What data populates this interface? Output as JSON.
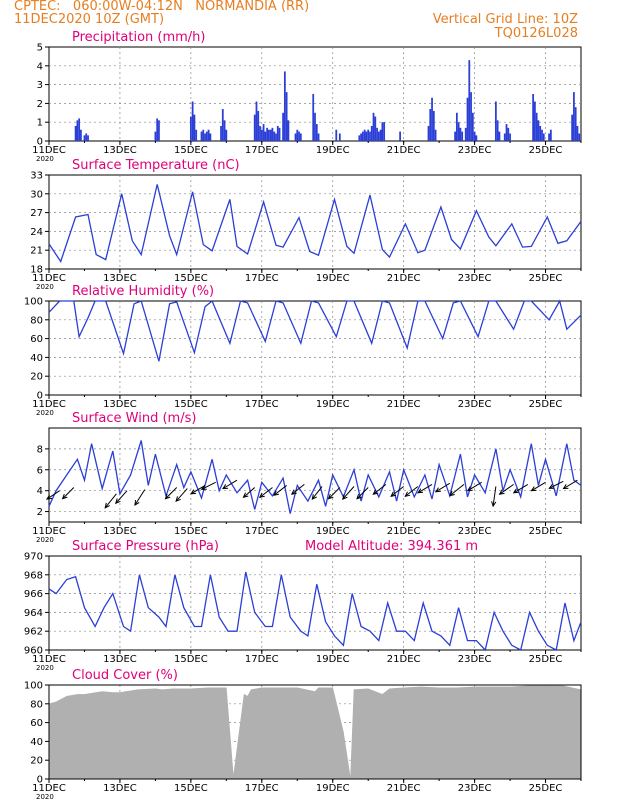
{
  "header": {
    "line1_left": "CPTEC:   060:00W-04:12N   NORMANDIA (RR)",
    "line2_left": "11DEC2020 10Z (GMT)",
    "line2_right": "Vertical Grid Line: 10Z",
    "line3_right": "TQ0126L028"
  },
  "colors": {
    "header": "#e67e22",
    "panel_title": "#e0007a",
    "line": "#2b3fd6",
    "bars": "#2b3fd6",
    "cloud": "#b0b0b0",
    "vectors": "#000000"
  },
  "x_axis": {
    "start_day": 11,
    "end_day": 26,
    "tick_labels": [
      "11DEC",
      "13DEC",
      "15DEC",
      "17DEC",
      "19DEC",
      "21DEC",
      "23DEC",
      "25DEC"
    ],
    "tick_days": [
      11,
      13,
      15,
      17,
      19,
      21,
      23,
      25
    ],
    "year_label": "2020"
  },
  "chart_data": [
    {
      "id": "precip",
      "type": "bar",
      "title": "Precipitation  (mm/h)",
      "ylim": [
        0,
        5
      ],
      "yticks": [
        0,
        1,
        2,
        3,
        4,
        5
      ],
      "points": [
        [
          11.75,
          0.8
        ],
        [
          11.8,
          1.1
        ],
        [
          11.85,
          1.2
        ],
        [
          11.9,
          0.6
        ],
        [
          12.0,
          0.3
        ],
        [
          12.05,
          0.4
        ],
        [
          12.1,
          0.3
        ],
        [
          14.0,
          0.5
        ],
        [
          14.05,
          1.2
        ],
        [
          14.1,
          1.1
        ],
        [
          15.0,
          1.3
        ],
        [
          15.05,
          2.1
        ],
        [
          15.1,
          1.4
        ],
        [
          15.15,
          0.6
        ],
        [
          15.3,
          0.5
        ],
        [
          15.35,
          0.6
        ],
        [
          15.4,
          0.4
        ],
        [
          15.45,
          0.5
        ],
        [
          15.5,
          0.6
        ],
        [
          15.55,
          0.4
        ],
        [
          15.85,
          0.8
        ],
        [
          15.9,
          1.7
        ],
        [
          15.95,
          1.1
        ],
        [
          16.0,
          0.6
        ],
        [
          16.8,
          1.4
        ],
        [
          16.85,
          2.1
        ],
        [
          16.9,
          1.6
        ],
        [
          16.95,
          0.8
        ],
        [
          17.0,
          0.6
        ],
        [
          17.05,
          0.9
        ],
        [
          17.1,
          0.5
        ],
        [
          17.15,
          0.7
        ],
        [
          17.2,
          0.6
        ],
        [
          17.25,
          0.6
        ],
        [
          17.3,
          0.7
        ],
        [
          17.35,
          0.5
        ],
        [
          17.4,
          0.4
        ],
        [
          17.45,
          0.8
        ],
        [
          17.5,
          0.7
        ],
        [
          17.6,
          1.5
        ],
        [
          17.65,
          3.7
        ],
        [
          17.7,
          2.6
        ],
        [
          17.75,
          1.1
        ],
        [
          17.95,
          0.4
        ],
        [
          18.0,
          0.6
        ],
        [
          18.05,
          0.5
        ],
        [
          18.1,
          0.4
        ],
        [
          18.45,
          2.5
        ],
        [
          18.5,
          1.5
        ],
        [
          18.55,
          0.9
        ],
        [
          18.6,
          0.4
        ],
        [
          19.1,
          0.6
        ],
        [
          19.2,
          0.4
        ],
        [
          19.75,
          0.3
        ],
        [
          19.8,
          0.4
        ],
        [
          19.85,
          0.5
        ],
        [
          19.9,
          0.6
        ],
        [
          19.95,
          0.5
        ],
        [
          20.0,
          0.6
        ],
        [
          20.05,
          0.5
        ],
        [
          20.1,
          0.8
        ],
        [
          20.15,
          1.5
        ],
        [
          20.2,
          1.3
        ],
        [
          20.25,
          0.7
        ],
        [
          20.3,
          0.5
        ],
        [
          20.35,
          0.6
        ],
        [
          20.4,
          1.0
        ],
        [
          20.45,
          1.0
        ],
        [
          20.9,
          0.5
        ],
        [
          21.7,
          0.8
        ],
        [
          21.75,
          1.7
        ],
        [
          21.8,
          2.3
        ],
        [
          21.85,
          1.6
        ],
        [
          21.9,
          0.6
        ],
        [
          22.45,
          0.5
        ],
        [
          22.5,
          1.5
        ],
        [
          22.55,
          1.0
        ],
        [
          22.6,
          0.7
        ],
        [
          22.65,
          0.5
        ],
        [
          22.75,
          0.7
        ],
        [
          22.8,
          2.3
        ],
        [
          22.85,
          4.3
        ],
        [
          22.9,
          2.6
        ],
        [
          22.95,
          1.5
        ],
        [
          23.0,
          0.5
        ],
        [
          23.05,
          0.3
        ],
        [
          23.6,
          2.1
        ],
        [
          23.65,
          1.1
        ],
        [
          23.7,
          0.5
        ],
        [
          23.85,
          0.4
        ],
        [
          23.9,
          0.9
        ],
        [
          23.95,
          0.7
        ],
        [
          24.0,
          0.4
        ],
        [
          24.65,
          2.5
        ],
        [
          24.7,
          2.1
        ],
        [
          24.75,
          1.5
        ],
        [
          24.8,
          1.1
        ],
        [
          24.85,
          0.8
        ],
        [
          24.9,
          0.6
        ],
        [
          24.95,
          0.4
        ],
        [
          25.1,
          0.4
        ],
        [
          25.15,
          0.6
        ],
        [
          25.75,
          1.4
        ],
        [
          25.8,
          2.6
        ],
        [
          25.85,
          1.8
        ],
        [
          25.9,
          0.8
        ],
        [
          25.95,
          0.4
        ]
      ]
    },
    {
      "id": "temp",
      "type": "line",
      "title": "Surface Temperature (nC)",
      "ylim": [
        18,
        33
      ],
      "yticks": [
        18,
        21,
        24,
        27,
        30,
        33
      ],
      "x": [
        11,
        11.33,
        11.75,
        12.1,
        12.33,
        12.6,
        13.05,
        13.35,
        13.6,
        14.05,
        14.4,
        14.6,
        15.05,
        15.35,
        15.6,
        16.1,
        16.3,
        16.6,
        17.05,
        17.4,
        17.6,
        18.05,
        18.35,
        18.6,
        19.05,
        19.4,
        19.6,
        20.05,
        20.4,
        20.6,
        21.05,
        21.4,
        21.6,
        22.05,
        22.35,
        22.6,
        23.05,
        23.4,
        23.6,
        24.05,
        24.35,
        24.6,
        25.05,
        25.35,
        25.6,
        26.0
      ],
      "y": [
        22,
        19.2,
        26.3,
        26.7,
        20.3,
        19.5,
        30.0,
        22.5,
        20.3,
        31.5,
        23.3,
        20.3,
        30.3,
        21.9,
        20.9,
        29.1,
        21.6,
        20.4,
        28.7,
        21.8,
        21.5,
        26.2,
        20.8,
        20.2,
        29.1,
        21.6,
        20.5,
        29.8,
        21.1,
        19.9,
        25.2,
        20.6,
        21.0,
        27.9,
        22.7,
        21.2,
        27.3,
        23.1,
        21.7,
        25.2,
        21.5,
        21.6,
        26.3,
        22.1,
        22.5,
        25.6
      ]
    },
    {
      "id": "rh",
      "type": "line",
      "title": "Relative Humidity (%)",
      "ylim": [
        0,
        100
      ],
      "yticks": [
        0,
        20,
        40,
        60,
        80,
        100
      ],
      "x": [
        11,
        11.3,
        11.7,
        11.85,
        12.1,
        12.3,
        12.6,
        13.1,
        13.4,
        13.6,
        14.1,
        14.4,
        14.6,
        15.1,
        15.4,
        15.6,
        16.1,
        16.4,
        16.6,
        17.1,
        17.4,
        17.6,
        18.1,
        18.4,
        18.6,
        19.1,
        19.4,
        19.6,
        20.1,
        20.4,
        20.6,
        21.1,
        21.4,
        21.6,
        22.1,
        22.4,
        22.6,
        23.1,
        23.4,
        23.6,
        24.1,
        24.4,
        24.6,
        25.1,
        25.4,
        25.6,
        26.0
      ],
      "y": [
        88,
        100,
        100,
        62,
        82,
        100,
        100,
        44,
        97,
        100,
        36,
        97,
        99,
        45,
        94,
        100,
        55,
        100,
        98,
        57,
        100,
        98,
        55,
        100,
        98,
        62,
        100,
        100,
        55,
        100,
        98,
        50,
        100,
        100,
        60,
        98,
        100,
        62,
        100,
        100,
        70,
        100,
        100,
        80,
        100,
        70,
        85
      ]
    },
    {
      "id": "wind",
      "type": "line",
      "title": "Surface Wind (m/s)",
      "ylim": [
        1,
        10
      ],
      "yticks": [
        2,
        4,
        6,
        8
      ],
      "x": [
        11,
        11.2,
        11.5,
        11.8,
        12.0,
        12.2,
        12.5,
        12.8,
        13.0,
        13.3,
        13.6,
        13.8,
        14.0,
        14.3,
        14.6,
        14.8,
        15.0,
        15.3,
        15.6,
        15.8,
        16.0,
        16.3,
        16.6,
        16.8,
        17.0,
        17.3,
        17.6,
        17.8,
        18.0,
        18.3,
        18.6,
        18.8,
        19.0,
        19.3,
        19.6,
        19.8,
        20.0,
        20.3,
        20.6,
        20.8,
        21.0,
        21.3,
        21.6,
        21.8,
        22.0,
        22.3,
        22.6,
        22.8,
        23.0,
        23.3,
        23.6,
        23.8,
        24.0,
        24.3,
        24.6,
        24.8,
        25.0,
        25.3,
        25.6,
        25.8,
        26.0
      ],
      "y": [
        2.5,
        4.0,
        5.5,
        7.0,
        5.0,
        8.5,
        4.2,
        7.8,
        3.7,
        5.5,
        8.8,
        4.5,
        7.5,
        3.5,
        6.5,
        4.3,
        5.8,
        3.3,
        7.0,
        4.0,
        5.5,
        3.8,
        5.0,
        2.2,
        4.8,
        3.5,
        5.2,
        1.8,
        4.5,
        3.0,
        5.0,
        2.5,
        5.5,
        3.4,
        6.0,
        3.0,
        5.5,
        3.4,
        5.8,
        3.0,
        6.0,
        3.4,
        5.5,
        3.2,
        6.5,
        3.5,
        7.5,
        3.4,
        5.5,
        3.8,
        8.0,
        4.0,
        6.0,
        3.4,
        8.5,
        4.5,
        7.0,
        3.5,
        8.5,
        5.0,
        4.5
      ],
      "arrows": [
        [
          11.3,
          4.0,
          -0.9,
          -0.6
        ],
        [
          11.7,
          4.3,
          -0.8,
          -0.8
        ],
        [
          12.9,
          3.7,
          -0.8,
          -1.0
        ],
        [
          13.2,
          4.0,
          -0.8,
          -0.9
        ],
        [
          13.7,
          4.1,
          -0.7,
          -1.1
        ],
        [
          14.6,
          4.3,
          -0.8,
          -0.8
        ],
        [
          14.9,
          4.2,
          -0.8,
          -0.9
        ],
        [
          15.4,
          4.5,
          -1.0,
          -0.6
        ],
        [
          15.7,
          4.8,
          -1.0,
          -0.5
        ],
        [
          16.3,
          5.0,
          -1.0,
          -0.6
        ],
        [
          16.8,
          4.3,
          -0.8,
          -0.7
        ],
        [
          17.3,
          4.3,
          -0.9,
          -0.7
        ],
        [
          17.7,
          4.5,
          -0.9,
          -0.7
        ],
        [
          18.2,
          4.6,
          -0.9,
          -0.7
        ],
        [
          18.7,
          4.4,
          -0.7,
          -0.9
        ],
        [
          19.2,
          4.3,
          -0.8,
          -0.8
        ],
        [
          19.6,
          4.4,
          -0.8,
          -0.9
        ],
        [
          20.0,
          4.3,
          -0.8,
          -0.8
        ],
        [
          20.5,
          4.6,
          -0.9,
          -0.7
        ],
        [
          21.0,
          4.4,
          -0.9,
          -0.7
        ],
        [
          21.4,
          4.4,
          -0.9,
          -0.7
        ],
        [
          21.8,
          4.6,
          -1.0,
          -0.6
        ],
        [
          22.3,
          4.7,
          -1.0,
          -0.6
        ],
        [
          22.7,
          4.6,
          -1.0,
          -0.8
        ],
        [
          23.2,
          4.8,
          -1.0,
          -0.6
        ],
        [
          23.6,
          4.4,
          -0.2,
          -1.4
        ],
        [
          24.1,
          4.6,
          -1.0,
          -0.7
        ],
        [
          24.5,
          4.6,
          -1.0,
          -0.6
        ],
        [
          25.0,
          4.8,
          -1.0,
          -0.6
        ],
        [
          25.5,
          4.9,
          -1.0,
          -0.5
        ],
        [
          25.9,
          5.0,
          -1.0,
          -0.6
        ]
      ]
    },
    {
      "id": "pres",
      "type": "line",
      "title": "Surface Pressure (hPa)",
      "subtitle": "Model Altitude: 394.361  m",
      "ylim": [
        960,
        970
      ],
      "yticks": [
        960,
        962,
        964,
        966,
        968,
        970
      ],
      "x": [
        11,
        11.2,
        11.5,
        11.75,
        12.0,
        12.3,
        12.55,
        12.8,
        13.1,
        13.3,
        13.55,
        13.8,
        14.1,
        14.3,
        14.55,
        14.8,
        15.1,
        15.3,
        15.55,
        15.8,
        16.05,
        16.3,
        16.55,
        16.8,
        17.1,
        17.3,
        17.55,
        17.8,
        18.1,
        18.3,
        18.55,
        18.8,
        19.05,
        19.3,
        19.55,
        19.8,
        20.05,
        20.3,
        20.55,
        20.8,
        21.05,
        21.3,
        21.55,
        21.8,
        22.05,
        22.3,
        22.55,
        22.8,
        23.05,
        23.3,
        23.55,
        23.8,
        24.05,
        24.3,
        24.55,
        24.8,
        25.05,
        25.3,
        25.55,
        25.8,
        26.0
      ],
      "y": [
        966.5,
        966.0,
        967.5,
        967.8,
        964.5,
        962.5,
        964.5,
        966.0,
        962.5,
        962.0,
        968.0,
        964.5,
        963.5,
        962.5,
        968.0,
        964.5,
        962.5,
        962.5,
        968.0,
        963.5,
        962.0,
        962.0,
        968.3,
        964.0,
        962.5,
        962.5,
        968.0,
        963.5,
        962.0,
        961.5,
        967.0,
        963.0,
        961.5,
        960.5,
        966.0,
        962.5,
        962.0,
        961.0,
        965.0,
        962.0,
        962.0,
        961.0,
        965.0,
        962.0,
        961.5,
        960.5,
        964.5,
        961.0,
        961.0,
        960.0,
        964.0,
        962.0,
        960.5,
        960.0,
        964.0,
        962.0,
        960.5,
        960.0,
        965.0,
        961.0,
        963.0
      ]
    },
    {
      "id": "cloud",
      "type": "area",
      "title": "Cloud Cover (%)",
      "ylim": [
        0,
        100
      ],
      "yticks": [
        0,
        20,
        40,
        60,
        80,
        100
      ],
      "x": [
        11,
        11.2,
        11.5,
        11.8,
        12.0,
        12.5,
        12.8,
        13.0,
        13.5,
        14.0,
        14.2,
        14.5,
        15.0,
        15.5,
        16.0,
        16.2,
        16.5,
        16.6,
        16.7,
        17.0,
        17.5,
        18.0,
        18.5,
        18.6,
        19.0,
        19.3,
        19.5,
        19.6,
        20.0,
        20.4,
        20.6,
        21.0,
        21.5,
        22.0,
        22.5,
        23.0,
        23.5,
        24.0,
        24.5,
        25.0,
        25.5,
        26.0
      ],
      "y": [
        80,
        82,
        88,
        90,
        90,
        93,
        92,
        92,
        95,
        96,
        95,
        96,
        96,
        97,
        97,
        2,
        90,
        88,
        95,
        97,
        97,
        97,
        93,
        97,
        97,
        50,
        0,
        95,
        96,
        90,
        96,
        97,
        98,
        97,
        97,
        98,
        98,
        98,
        99,
        99,
        99,
        95
      ]
    }
  ]
}
